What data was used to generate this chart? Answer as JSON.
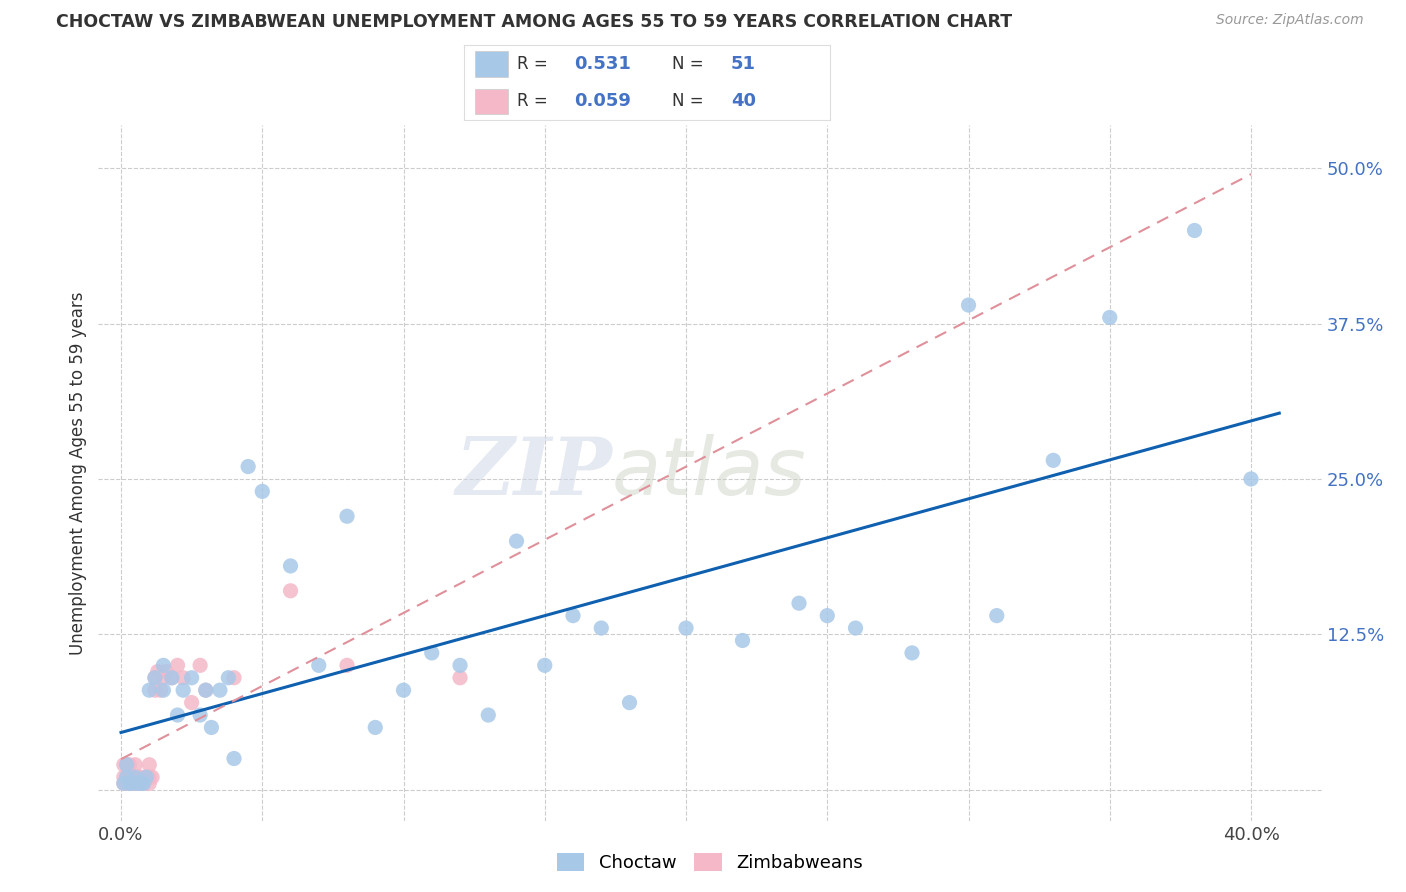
{
  "title": "CHOCTAW VS ZIMBABWEAN UNEMPLOYMENT AMONG AGES 55 TO 59 YEARS CORRELATION CHART",
  "source": "Source: ZipAtlas.com",
  "ylabel": "Unemployment Among Ages 55 to 59 years",
  "xlim": [
    -0.008,
    0.425
  ],
  "ylim": [
    -0.025,
    0.535
  ],
  "background_color": "#ffffff",
  "grid_color": "#cccccc",
  "watermark_zip": "ZIP",
  "watermark_atlas": "atlas",
  "choctaw_color": "#a8c8e8",
  "zimbabwean_color": "#f4b8c8",
  "line_choctaw_color": "#1060b0",
  "line_zimbabwean_color": "#e0909a",
  "R_choctaw": "0.531",
  "N_choctaw": "51",
  "R_zimbabwean": "0.059",
  "N_zimbabwean": "40",
  "legend_label1": "Choctaw",
  "legend_label2": "Zimbabweans",
  "choctaw_x": [
    0.001,
    0.002,
    0.002,
    0.003,
    0.004,
    0.005,
    0.006,
    0.007,
    0.008,
    0.009,
    0.01,
    0.012,
    0.015,
    0.015,
    0.018,
    0.02,
    0.022,
    0.025,
    0.028,
    0.03,
    0.032,
    0.035,
    0.038,
    0.04,
    0.045,
    0.05,
    0.06,
    0.07,
    0.08,
    0.09,
    0.1,
    0.11,
    0.12,
    0.13,
    0.14,
    0.15,
    0.16,
    0.17,
    0.18,
    0.2,
    0.22,
    0.24,
    0.25,
    0.26,
    0.28,
    0.3,
    0.31,
    0.33,
    0.35,
    0.38,
    0.4
  ],
  "choctaw_y": [
    0.005,
    0.01,
    0.02,
    0.005,
    0.005,
    0.01,
    0.005,
    0.005,
    0.005,
    0.01,
    0.08,
    0.09,
    0.08,
    0.1,
    0.09,
    0.06,
    0.08,
    0.09,
    0.06,
    0.08,
    0.05,
    0.08,
    0.09,
    0.025,
    0.26,
    0.24,
    0.18,
    0.1,
    0.22,
    0.05,
    0.08,
    0.11,
    0.1,
    0.06,
    0.2,
    0.1,
    0.14,
    0.13,
    0.07,
    0.13,
    0.12,
    0.15,
    0.14,
    0.13,
    0.11,
    0.39,
    0.14,
    0.265,
    0.38,
    0.45,
    0.25
  ],
  "zimbabwean_x": [
    0.001,
    0.001,
    0.001,
    0.002,
    0.002,
    0.002,
    0.003,
    0.003,
    0.003,
    0.004,
    0.004,
    0.005,
    0.005,
    0.005,
    0.006,
    0.006,
    0.007,
    0.007,
    0.008,
    0.009,
    0.01,
    0.01,
    0.01,
    0.011,
    0.012,
    0.012,
    0.013,
    0.014,
    0.015,
    0.016,
    0.018,
    0.02,
    0.022,
    0.025,
    0.028,
    0.03,
    0.04,
    0.06,
    0.08,
    0.12
  ],
  "zimbabwean_y": [
    0.005,
    0.01,
    0.02,
    0.005,
    0.01,
    0.02,
    0.005,
    0.01,
    0.02,
    0.005,
    0.01,
    0.005,
    0.01,
    0.02,
    0.005,
    0.01,
    0.005,
    0.01,
    0.005,
    0.01,
    0.005,
    0.01,
    0.02,
    0.01,
    0.08,
    0.09,
    0.095,
    0.08,
    0.09,
    0.095,
    0.09,
    0.1,
    0.09,
    0.07,
    0.1,
    0.08,
    0.09,
    0.16,
    0.1,
    0.09
  ]
}
